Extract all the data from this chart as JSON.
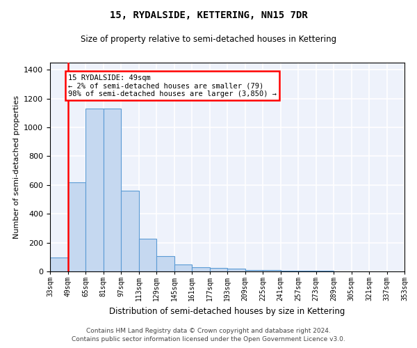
{
  "title": "15, RYDALSIDE, KETTERING, NN15 7DR",
  "subtitle": "Size of property relative to semi-detached houses in Kettering",
  "xlabel": "Distribution of semi-detached houses by size in Kettering",
  "ylabel": "Number of semi-detached properties",
  "footer_line1": "Contains HM Land Registry data © Crown copyright and database right 2024.",
  "footer_line2": "Contains public sector information licensed under the Open Government Licence v3.0.",
  "bins": [
    "33sqm",
    "49sqm",
    "65sqm",
    "81sqm",
    "97sqm",
    "113sqm",
    "129sqm",
    "145sqm",
    "161sqm",
    "177sqm",
    "193sqm",
    "209sqm",
    "225sqm",
    "241sqm",
    "257sqm",
    "273sqm",
    "289sqm",
    "305sqm",
    "321sqm",
    "337sqm",
    "353sqm"
  ],
  "values": [
    95,
    620,
    1130,
    1130,
    560,
    225,
    105,
    50,
    30,
    22,
    18,
    12,
    8,
    5,
    4,
    3,
    0,
    0,
    0,
    0
  ],
  "bar_color": "#c5d8f0",
  "bar_edge_color": "#5b9bd5",
  "highlight_color": "red",
  "annotation_text": "15 RYDALSIDE: 49sqm\n← 2% of semi-detached houses are smaller (79)\n98% of semi-detached houses are larger (3,850) →",
  "ylim": [
    0,
    1450
  ],
  "yticks": [
    0,
    200,
    400,
    600,
    800,
    1000,
    1200,
    1400
  ],
  "bg_color": "#eef2fb",
  "grid_color": "white"
}
